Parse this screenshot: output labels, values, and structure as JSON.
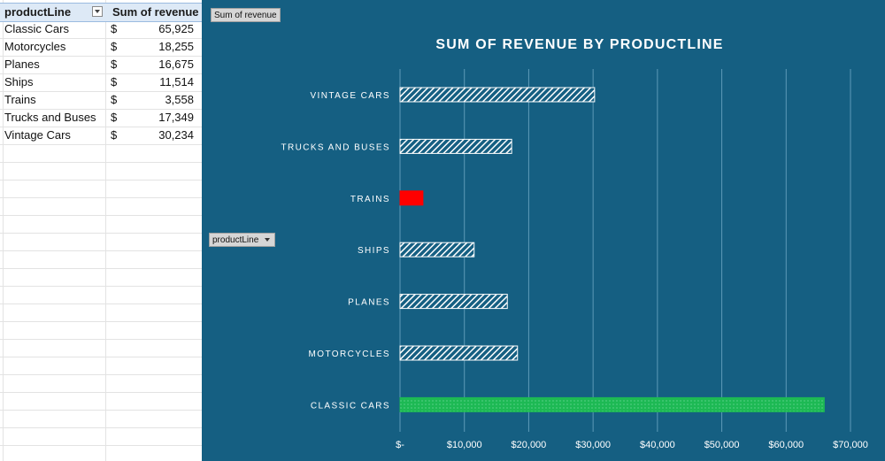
{
  "pivot": {
    "headers": {
      "row_field": "productLine",
      "value_field": "Sum of revenue"
    },
    "currency_symbol": "$",
    "rows": [
      {
        "label": "Classic Cars",
        "value": "65,925"
      },
      {
        "label": "Motorcycles",
        "value": "18,255"
      },
      {
        "label": "Planes",
        "value": "16,675"
      },
      {
        "label": "Ships",
        "value": "11,514"
      },
      {
        "label": "Trains",
        "value": "3,558"
      },
      {
        "label": "Trucks and Buses",
        "value": "17,349"
      },
      {
        "label": "Vintage Cars",
        "value": "30,234"
      }
    ]
  },
  "field_buttons": {
    "values_button": "Sum of revenue",
    "axis_button": "productLine"
  },
  "chart_data": {
    "type": "bar",
    "orientation": "horizontal",
    "title": "SUM OF REVENUE BY PRODUCTLINE",
    "categories": [
      "CLASSIC CARS",
      "MOTORCYCLES",
      "PLANES",
      "SHIPS",
      "TRAINS",
      "TRUCKS AND BUSES",
      "VINTAGE CARS"
    ],
    "values": [
      65925,
      18255,
      16675,
      11514,
      3558,
      17349,
      30234
    ],
    "xlim": [
      0,
      70000
    ],
    "x_ticks": [
      0,
      10000,
      20000,
      30000,
      40000,
      50000,
      60000,
      70000
    ],
    "x_tick_labels": [
      "$-",
      "$10,000",
      "$20,000",
      "$30,000",
      "$40,000",
      "$50,000",
      "$60,000",
      "$70,000"
    ],
    "grid": "vertical",
    "legend": "none",
    "colors": {
      "background": "#155f82",
      "gridline": "#5d9ab8",
      "text": "#ffffff",
      "highlight_max": "#1db954",
      "highlight_min": "#ff0000",
      "default_bar_fill": "#ffffff"
    }
  }
}
